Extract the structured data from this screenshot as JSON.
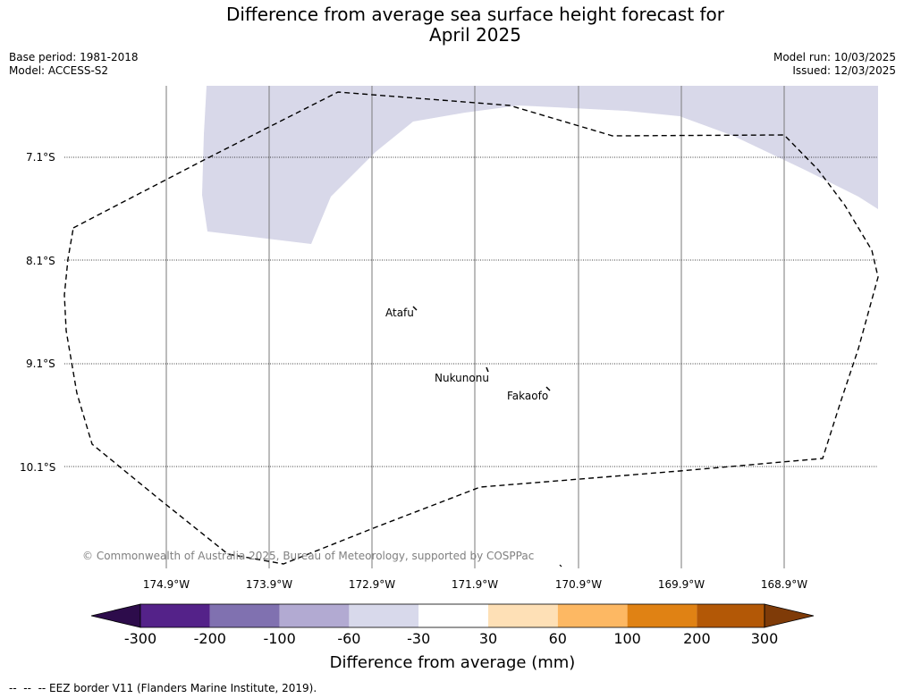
{
  "title_line1": "Difference from average sea surface height forecast for",
  "title_line2": "April 2025",
  "meta_left": {
    "base_period": "Base period: 1981-2018",
    "model": "Model: ACCESS-S2"
  },
  "meta_right": {
    "model_run": "Model run: 10/03/2025",
    "issued": "Issued: 12/03/2025"
  },
  "map": {
    "latitude_labels": [
      "7.1°S",
      "8.1°S",
      "9.1°S",
      "10.1°S"
    ],
    "longitude_labels": [
      "174.9°W",
      "173.9°W",
      "172.9°W",
      "171.9°W",
      "170.9°W",
      "169.9°W",
      "168.9°W"
    ],
    "places": [
      "Atafu",
      "Nukunonu",
      "Fakaofo"
    ],
    "copyright": "© Commonwealth of Australia 2025, Bureau of Meteorology, supported by COSPPac",
    "shading_color": "#d8d8e9",
    "eez_border_style": "dashed"
  },
  "colorbar": {
    "title": "Difference from average (mm)",
    "ticks": [
      "-300",
      "-200",
      "-100",
      "-60",
      "-30",
      "30",
      "60",
      "100",
      "200",
      "300"
    ],
    "colors": [
      "#2d0c4b",
      "#542289",
      "#8071b0",
      "#b2aad2",
      "#d8d9eb",
      "#ffffff",
      "#fee0b6",
      "#fdb863",
      "#e08214",
      "#b35806",
      "#7f3b08"
    ]
  },
  "footnote": "--  --  -- EEZ border V11 (Flanders Marine Institute, 2019)."
}
